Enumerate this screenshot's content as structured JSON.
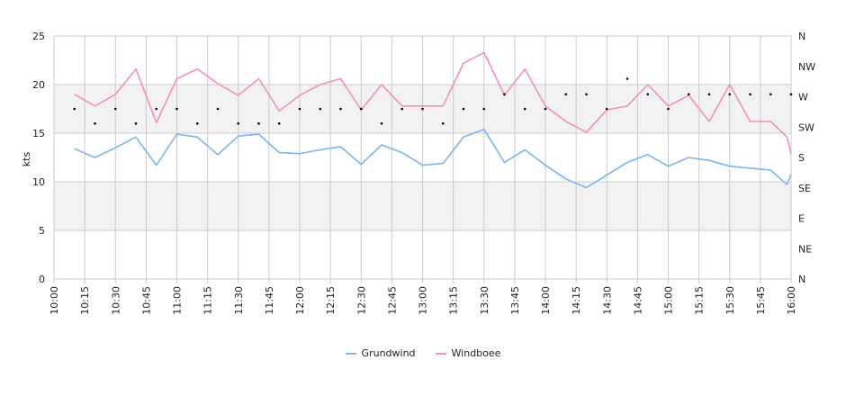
{
  "chart_data": {
    "type": "line",
    "ylabel": "kts",
    "ylim": [
      0,
      25
    ],
    "y_ticks": [
      "0",
      "5",
      "10",
      "15",
      "20",
      "25"
    ],
    "x_ticks": [
      "10:00",
      "10:15",
      "10:30",
      "10:45",
      "11:00",
      "11:15",
      "11:30",
      "11:45",
      "12:00",
      "12:15",
      "12:30",
      "12:45",
      "13:00",
      "13:15",
      "13:30",
      "13:45",
      "14:00",
      "14:15",
      "14:30",
      "14:45",
      "15:00",
      "15:15",
      "15:30",
      "15:45",
      "16:00"
    ],
    "x_range_minutes": [
      0,
      360
    ],
    "right_axis_labels": [
      "N",
      "NE",
      "E",
      "SE",
      "S",
      "SW",
      "W",
      "NW",
      "N"
    ],
    "grid": true,
    "legend_position": "bottom",
    "colors": {
      "Grundwind": "#7cb5ec",
      "Windboee": "#f48fb8",
      "direction": "#000000",
      "band": "#f2f2f2",
      "grid": "#cccccc"
    },
    "series": [
      {
        "name": "Grundwind",
        "points": [
          [
            10,
            13.4
          ],
          [
            20,
            12.5
          ],
          [
            30,
            13.5
          ],
          [
            40,
            14.6
          ],
          [
            50,
            11.7
          ],
          [
            60,
            14.9
          ],
          [
            70,
            14.6
          ],
          [
            80,
            12.8
          ],
          [
            90,
            14.7
          ],
          [
            100,
            14.9
          ],
          [
            110,
            13.0
          ],
          [
            120,
            12.9
          ],
          [
            130,
            13.3
          ],
          [
            140,
            13.6
          ],
          [
            150,
            11.8
          ],
          [
            160,
            13.8
          ],
          [
            170,
            13.0
          ],
          [
            180,
            11.7
          ],
          [
            190,
            11.9
          ],
          [
            200,
            14.6
          ],
          [
            210,
            15.4
          ],
          [
            220,
            12.0
          ],
          [
            230,
            13.3
          ],
          [
            240,
            11.7
          ],
          [
            250,
            10.3
          ],
          [
            260,
            9.4
          ],
          [
            270,
            10.7
          ],
          [
            280,
            12.0
          ],
          [
            290,
            12.8
          ],
          [
            300,
            11.6
          ],
          [
            310,
            12.5
          ],
          [
            320,
            12.2
          ],
          [
            330,
            11.6
          ],
          [
            340,
            11.4
          ],
          [
            350,
            11.2
          ],
          [
            358,
            9.7
          ],
          [
            360,
            10.8
          ]
        ]
      },
      {
        "name": "Windboee",
        "points": [
          [
            10,
            19.0
          ],
          [
            20,
            17.8
          ],
          [
            30,
            19.0
          ],
          [
            40,
            21.6
          ],
          [
            50,
            16.1
          ],
          [
            60,
            20.6
          ],
          [
            70,
            21.6
          ],
          [
            80,
            20.1
          ],
          [
            90,
            18.9
          ],
          [
            100,
            20.6
          ],
          [
            110,
            17.3
          ],
          [
            120,
            18.9
          ],
          [
            130,
            20.0
          ],
          [
            140,
            20.6
          ],
          [
            150,
            17.4
          ],
          [
            160,
            20.0
          ],
          [
            170,
            17.8
          ],
          [
            180,
            17.8
          ],
          [
            190,
            17.8
          ],
          [
            200,
            22.2
          ],
          [
            210,
            23.3
          ],
          [
            220,
            18.9
          ],
          [
            230,
            21.6
          ],
          [
            240,
            17.8
          ],
          [
            250,
            16.2
          ],
          [
            260,
            15.1
          ],
          [
            270,
            17.4
          ],
          [
            280,
            17.8
          ],
          [
            290,
            20.0
          ],
          [
            300,
            17.8
          ],
          [
            310,
            18.9
          ],
          [
            320,
            16.2
          ],
          [
            330,
            20.0
          ],
          [
            340,
            16.2
          ],
          [
            350,
            16.2
          ],
          [
            358,
            14.6
          ],
          [
            360,
            12.9
          ]
        ]
      }
    ],
    "direction": {
      "name": "direction",
      "points": [
        [
          10,
          17.5
        ],
        [
          20,
          16.0
        ],
        [
          30,
          17.5
        ],
        [
          40,
          16.0
        ],
        [
          50,
          17.5
        ],
        [
          60,
          17.5
        ],
        [
          70,
          16.0
        ],
        [
          80,
          17.5
        ],
        [
          90,
          16.0
        ],
        [
          100,
          16.0
        ],
        [
          110,
          16.0
        ],
        [
          120,
          17.5
        ],
        [
          130,
          17.5
        ],
        [
          140,
          17.5
        ],
        [
          150,
          17.5
        ],
        [
          160,
          16.0
        ],
        [
          170,
          17.5
        ],
        [
          180,
          17.5
        ],
        [
          190,
          16.0
        ],
        [
          200,
          17.5
        ],
        [
          210,
          17.5
        ],
        [
          220,
          19.0
        ],
        [
          230,
          17.5
        ],
        [
          240,
          17.5
        ],
        [
          250,
          19.0
        ],
        [
          260,
          19.0
        ],
        [
          270,
          17.5
        ],
        [
          280,
          20.6
        ],
        [
          290,
          19.0
        ],
        [
          300,
          17.5
        ],
        [
          310,
          19.0
        ],
        [
          320,
          19.0
        ],
        [
          330,
          19.0
        ],
        [
          340,
          19.0
        ],
        [
          350,
          19.0
        ],
        [
          360,
          19.0
        ]
      ]
    }
  }
}
